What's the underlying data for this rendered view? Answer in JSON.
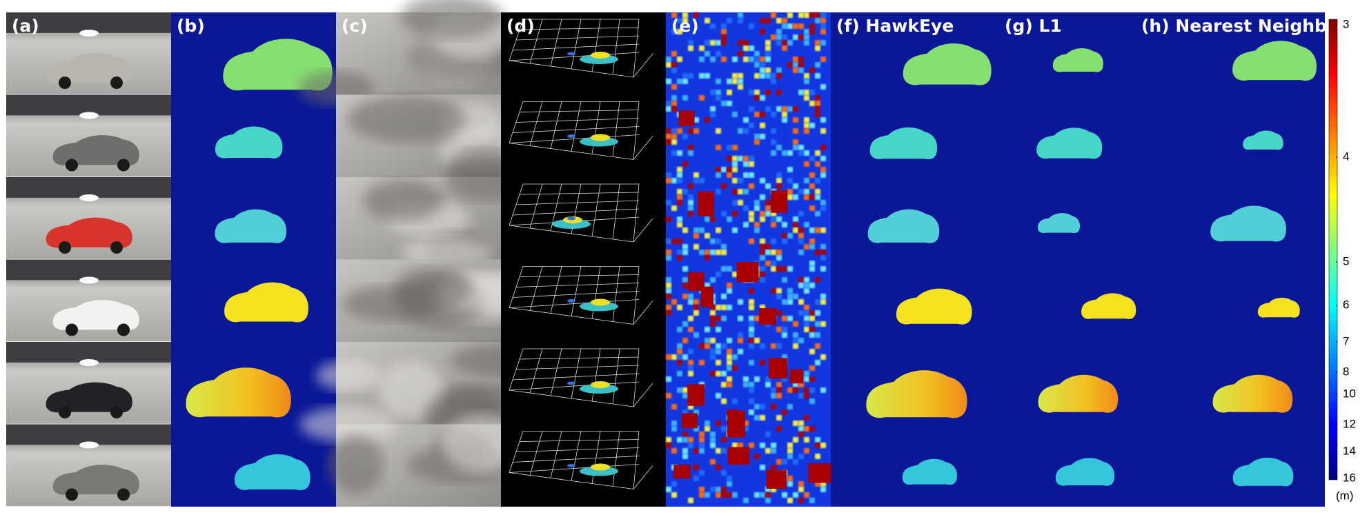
{
  "panels": [
    {
      "label": "(a)"
    },
    {
      "label": "(b)"
    },
    {
      "label": "(c)"
    },
    {
      "label": "(d)"
    },
    {
      "label": "(e)"
    },
    {
      "label": "(f) HawkEye"
    },
    {
      "label": "(g) L1"
    },
    {
      "label": "(h) Nearest Neighbor"
    }
  ],
  "colorbar": {
    "ticks": [
      3,
      4,
      5,
      6,
      7,
      8,
      10,
      12,
      14,
      16
    ],
    "unit": "(m)"
  }
}
